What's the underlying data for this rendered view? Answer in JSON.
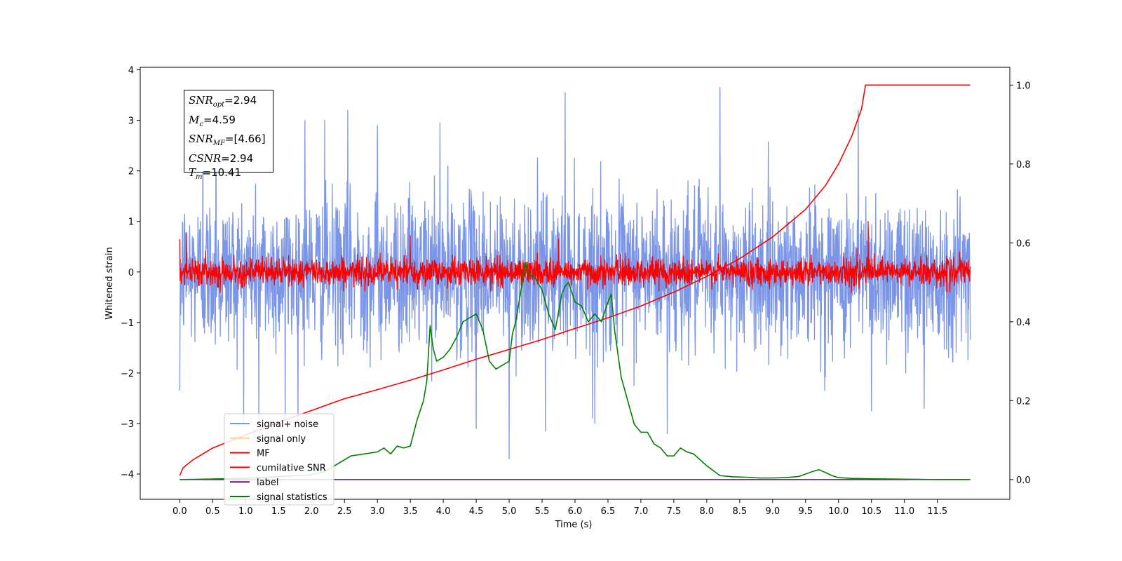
{
  "chart_data": {
    "type": "line",
    "xlabel": "Time (s)",
    "ylabel_left": "Whitened strain",
    "ylabel_right": "",
    "xlim": [
      -0.6,
      12.6
    ],
    "ylim_left": [
      -4.5,
      4.05
    ],
    "ylim_right": [
      -0.05,
      1.045
    ],
    "x_ticks": [
      "0.0",
      "0.5",
      "1.0",
      "1.5",
      "2.0",
      "2.5",
      "3.0",
      "3.5",
      "4.0",
      "4.5",
      "5.0",
      "5.5",
      "6.0",
      "6.5",
      "7.0",
      "7.5",
      "8.0",
      "8.5",
      "9.0",
      "9.5",
      "10.0",
      "10.5",
      "11.0",
      "11.5"
    ],
    "y_ticks_left": [
      "4",
      "3",
      "2",
      "1",
      "0",
      "−1",
      "−2",
      "−3",
      "−4"
    ],
    "y_ticks_right": [
      "1.0",
      "0.8",
      "0.6",
      "0.4",
      "0.2",
      "0.0"
    ],
    "grid": false,
    "legend": {
      "placement": "lower-left",
      "entries": [
        {
          "label": "signal+ noise",
          "color": "#7b96e8"
        },
        {
          "label": "signal only",
          "color": "#ffd27f"
        },
        {
          "label": "MF",
          "color": "#ff0000"
        },
        {
          "label": "cumilative SNR",
          "color": "#ff0000"
        },
        {
          "label": "label",
          "color": "#6a0d6a"
        },
        {
          "label": "signal statistics",
          "color": "#008000"
        }
      ]
    },
    "annotation": [
      {
        "base": "SNR",
        "sub": "opt",
        "value": "=2.94"
      },
      {
        "base": "M",
        "sub": "c",
        "value": "=4.59"
      },
      {
        "base": "SNR",
        "sub": "MF",
        "value": "=[4.66]"
      },
      {
        "base": "CSNR",
        "sub": "",
        "value": "=2.94"
      },
      {
        "base": "T",
        "sub": "m",
        "value": "=10.41"
      }
    ],
    "series": [
      {
        "name": "signal+ noise",
        "axis": "left",
        "color": "#7b96e8",
        "x_range": [
          0.0,
          12.0
        ],
        "noise_std": 0.75,
        "peaks": [
          [
            0.35,
            3.0
          ],
          [
            0.55,
            3.2
          ],
          [
            1.9,
            3.0
          ],
          [
            2.2,
            3.0
          ],
          [
            2.55,
            3.2
          ],
          [
            3.0,
            2.9
          ],
          [
            3.95,
            2.95
          ],
          [
            5.85,
            3.55
          ],
          [
            8.2,
            3.65
          ],
          [
            10.3,
            3.2
          ],
          [
            0.0,
            -2.35
          ],
          [
            1.2,
            -3.0
          ],
          [
            1.6,
            -2.9
          ],
          [
            4.5,
            -3.1
          ],
          [
            5.0,
            -3.7
          ],
          [
            5.55,
            -3.15
          ],
          [
            6.3,
            -3.0
          ],
          [
            7.4,
            -3.2
          ],
          [
            10.5,
            -2.75
          ],
          [
            11.3,
            -2.7
          ]
        ]
      },
      {
        "name": "MF",
        "axis": "left",
        "color": "#ff0000",
        "x_range": [
          0.0,
          12.0
        ],
        "noise_std": 0.13,
        "peaks": [
          [
            0.1,
            0.78
          ],
          [
            3.5,
            0.72
          ],
          [
            5.75,
            0.65
          ],
          [
            10.45,
            1.0
          ],
          [
            0.0,
            0.65
          ],
          [
            3.3,
            -0.35
          ]
        ]
      },
      {
        "name": "cumilative SNR",
        "axis": "right",
        "color": "#ff0000",
        "x": [
          0.0,
          0.05,
          0.2,
          0.5,
          1.0,
          1.5,
          2.0,
          2.5,
          3.0,
          3.5,
          4.0,
          4.5,
          5.0,
          5.5,
          6.0,
          6.5,
          7.0,
          7.5,
          8.0,
          8.5,
          9.0,
          9.5,
          9.8,
          10.0,
          10.2,
          10.35,
          10.41,
          11.0,
          11.5,
          12.0
        ],
        "values": [
          0.01,
          0.03,
          0.05,
          0.08,
          0.113,
          0.145,
          0.175,
          0.205,
          0.228,
          0.252,
          0.278,
          0.305,
          0.33,
          0.355,
          0.383,
          0.41,
          0.44,
          0.475,
          0.515,
          0.56,
          0.615,
          0.685,
          0.745,
          0.8,
          0.87,
          0.94,
          1.0,
          1.0,
          1.0,
          1.0
        ]
      },
      {
        "name": "label",
        "axis": "right",
        "color": "#6a0d6a",
        "x": [
          0.0,
          12.0
        ],
        "values": [
          0.0,
          0.0
        ]
      },
      {
        "name": "signal statistics",
        "axis": "right",
        "color": "#008000",
        "x": [
          0.0,
          1.0,
          2.0,
          2.2,
          2.4,
          2.6,
          2.8,
          3.0,
          3.1,
          3.2,
          3.3,
          3.4,
          3.5,
          3.6,
          3.7,
          3.75,
          3.8,
          3.85,
          3.9,
          4.0,
          4.1,
          4.2,
          4.3,
          4.4,
          4.5,
          4.6,
          4.7,
          4.8,
          4.9,
          5.0,
          5.05,
          5.1,
          5.2,
          5.25,
          5.3,
          5.4,
          5.5,
          5.6,
          5.7,
          5.8,
          5.85,
          5.9,
          6.0,
          6.1,
          6.2,
          6.3,
          6.4,
          6.5,
          6.55,
          6.6,
          6.7,
          6.8,
          6.9,
          7.0,
          7.1,
          7.2,
          7.3,
          7.4,
          7.5,
          7.6,
          7.7,
          7.8,
          7.9,
          8.0,
          8.2,
          8.4,
          8.6,
          8.8,
          9.0,
          9.2,
          9.4,
          9.6,
          9.7,
          9.8,
          9.9,
          10.0,
          10.2,
          10.5,
          11.0,
          11.5,
          12.0
        ],
        "values": [
          0.0,
          0.003,
          0.012,
          0.02,
          0.04,
          0.06,
          0.065,
          0.07,
          0.08,
          0.065,
          0.085,
          0.08,
          0.085,
          0.15,
          0.2,
          0.25,
          0.39,
          0.33,
          0.3,
          0.31,
          0.33,
          0.36,
          0.4,
          0.41,
          0.42,
          0.38,
          0.3,
          0.28,
          0.29,
          0.3,
          0.37,
          0.4,
          0.5,
          0.55,
          0.52,
          0.51,
          0.48,
          0.42,
          0.38,
          0.47,
          0.49,
          0.5,
          0.45,
          0.44,
          0.4,
          0.42,
          0.4,
          0.45,
          0.47,
          0.38,
          0.26,
          0.2,
          0.14,
          0.12,
          0.12,
          0.09,
          0.08,
          0.06,
          0.06,
          0.08,
          0.07,
          0.065,
          0.05,
          0.035,
          0.01,
          0.007,
          0.006,
          0.004,
          0.004,
          0.005,
          0.008,
          0.02,
          0.025,
          0.018,
          0.01,
          0.005,
          0.003,
          0.002,
          0.001,
          0.0,
          0.0
        ]
      }
    ]
  }
}
